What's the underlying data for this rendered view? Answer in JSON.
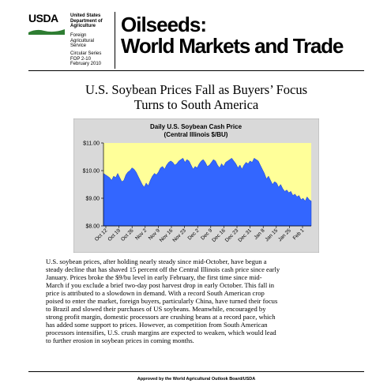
{
  "header": {
    "logo": "USDA",
    "department": [
      "United States",
      "Department of",
      "Agriculture"
    ],
    "agency": [
      "Foreign",
      "Agricultural",
      "Service"
    ],
    "circular": [
      "Circular Series",
      "FOP 2-10",
      "February 2010"
    ],
    "title_line1": "Oilseeds:",
    "title_line2": "World Markets and Trade"
  },
  "headline": [
    "U.S. Soybean Prices Fall as Buyers’ Focus",
    "Turns to South America"
  ],
  "colors": {
    "plot_bg": "#ffff99",
    "area_fill": "#3366ff",
    "chart_bg": "#d9d9d9",
    "usda_green": "#2e7d32"
  },
  "chart_data": {
    "type": "area",
    "title": "Daily U.S. Soybean Cash Price",
    "subtitle": "(Central Illinois $/BU)",
    "ylim": [
      8.0,
      11.0
    ],
    "yticks": [
      "$8.00",
      "$9.00",
      "$10.00",
      "$11.00"
    ],
    "ytick_values": [
      8.0,
      9.0,
      10.0,
      11.0
    ],
    "xticks": [
      "Oct 12",
      "Oct 19",
      "Oct 26",
      "Nov 2",
      "Nov 9",
      "Nov 16",
      "Nov 23",
      "Dec 2",
      "Dec 9",
      "Dec 16",
      "Dec 23",
      "Dec 31",
      "Jan 8",
      "Jan 15",
      "Jan 25",
      "Feb 1"
    ],
    "grid": false,
    "legend": "none",
    "values": [
      9.9,
      9.85,
      9.8,
      9.75,
      9.65,
      9.8,
      9.75,
      9.9,
      9.75,
      9.6,
      9.65,
      9.85,
      9.95,
      10.0,
      10.1,
      10.05,
      9.95,
      9.8,
      9.65,
      9.5,
      9.4,
      9.55,
      9.45,
      9.65,
      9.8,
      9.9,
      9.85,
      9.95,
      10.1,
      10.15,
      10.05,
      10.2,
      10.3,
      10.35,
      10.3,
      10.2,
      10.25,
      10.35,
      10.4,
      10.45,
      10.3,
      10.4,
      10.35,
      10.2,
      10.05,
      10.15,
      10.1,
      10.25,
      10.35,
      10.4,
      10.3,
      10.15,
      10.2,
      10.3,
      10.4,
      10.35,
      10.2,
      10.1,
      10.25,
      10.15,
      10.3,
      10.35,
      10.4,
      10.45,
      10.35,
      10.25,
      10.1,
      10.2,
      10.05,
      10.2,
      10.3,
      10.25,
      10.35,
      10.3,
      10.45,
      10.4,
      10.35,
      10.2,
      10.05,
      9.9,
      9.7,
      9.8,
      9.65,
      9.5,
      9.6,
      9.55,
      9.4,
      9.5,
      9.35,
      9.25,
      9.3,
      9.2,
      9.25,
      9.1,
      9.15,
      9.05,
      9.1,
      8.95,
      9.0,
      8.9,
      9.05,
      8.95,
      8.9
    ]
  },
  "paragraph": [
    "U.S. soybean prices, after holding nearly steady since mid-October, have begun a",
    "steady decline that has shaved 15 percent off the Central Illinois cash price since early",
    "January.  Prices broke the $9/bu level in early February, the first time since mid-",
    "March if you exclude a brief two-day post harvest drop in early October.  This fall in",
    "price is attributed to a slowdown in demand.  With a record South American crop",
    "poised to enter the market, foreign buyers, particularly China, have turned their focus",
    "to Brazil and slowed their purchases of US soybeans.  Meanwhile, encouraged by",
    "strong profit margin, domestic processors are crushing beans at a record pace, which",
    "has added some support to prices. However, as competition from South American",
    "processors intensifies, U.S. crush margins are expected to weaken, which would lead",
    "to further erosion in soybean prices in coming months."
  ],
  "footer": "Approved by the World Agricultural Outlook Board/USDA"
}
